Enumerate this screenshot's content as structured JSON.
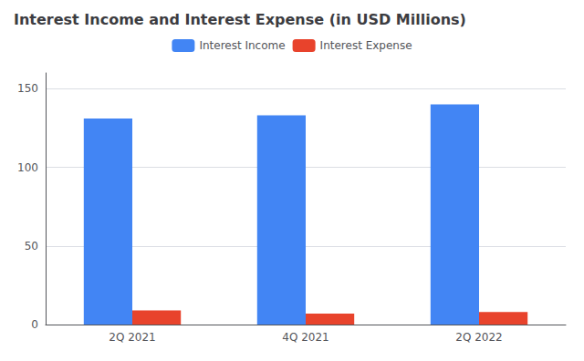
{
  "chart_data": {
    "type": "bar",
    "title": "Interest Income and Interest Expense (in USD Millions)",
    "categories": [
      "2Q 2021",
      "4Q 2021",
      "2Q 2022"
    ],
    "series": [
      {
        "name": "Interest Income",
        "color": "#4285f4",
        "values": [
          131,
          133,
          140
        ]
      },
      {
        "name": "Interest Expense",
        "color": "#e8432c",
        "values": [
          9,
          7,
          8
        ]
      }
    ],
    "ylim": [
      0,
      160
    ],
    "yticks": [
      0,
      50,
      100,
      150
    ],
    "grid": true,
    "legend": "top"
  }
}
